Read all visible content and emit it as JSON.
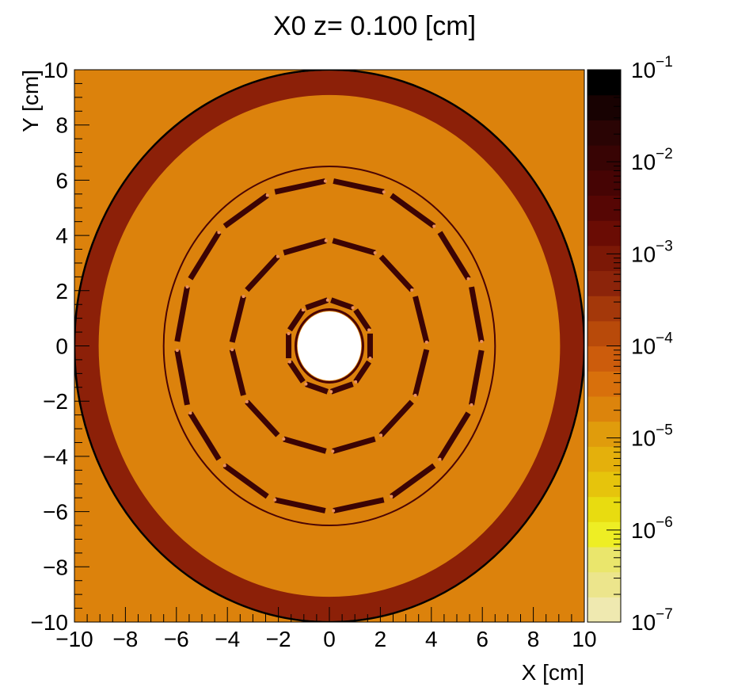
{
  "chart_data": {
    "type": "heatmap",
    "title": "X0 z=  0.100 [cm]",
    "xlabel": "X [cm]",
    "ylabel": "Y [cm]",
    "xlim": [
      -10,
      10
    ],
    "ylim": [
      -10,
      10
    ],
    "x_ticks": [
      -10,
      -8,
      -6,
      -4,
      -2,
      0,
      2,
      4,
      6,
      8,
      10
    ],
    "y_ticks": [
      -10,
      -8,
      -6,
      -4,
      -2,
      0,
      2,
      4,
      6,
      8,
      10
    ],
    "x_tick_labels": [
      "−10",
      "−8",
      "−6",
      "−4",
      "−2",
      "0",
      "2",
      "4",
      "6",
      "8",
      "10"
    ],
    "y_tick_labels": [
      "−10",
      "−8",
      "−6",
      "−4",
      "−2",
      "0",
      "2",
      "4",
      "6",
      "8",
      "10"
    ],
    "colorbar": {
      "scale": "log",
      "range": [
        1e-07,
        0.1
      ],
      "tick_labels": [
        {
          "base": "10",
          "exp": "−7"
        },
        {
          "base": "10",
          "exp": "−6"
        },
        {
          "base": "10",
          "exp": "−5"
        },
        {
          "base": "10",
          "exp": "−4"
        },
        {
          "base": "10",
          "exp": "−3"
        },
        {
          "base": "10",
          "exp": "−2"
        },
        {
          "base": "10",
          "exp": "−1"
        }
      ],
      "bands": [
        "#efe9b0",
        "#ece58c",
        "#eae66c",
        "#eeee24",
        "#e8dc10",
        "#e6c40c",
        "#e4b00c",
        "#e09c0c",
        "#dc840c",
        "#d8700c",
        "#cc5c0c",
        "#b84a0a",
        "#a4380a",
        "#8c240a",
        "#7c1806",
        "#6a0c04",
        "#560604",
        "#460404",
        "#380404",
        "#2a0404",
        "#180202",
        "#000000"
      ]
    },
    "regions": [
      {
        "name": "background",
        "color": "#dc820c"
      },
      {
        "name": "outer-ring",
        "r_inner": 9.05,
        "r_outer": 10.0,
        "color": "#8c2008"
      },
      {
        "name": "outer-shell",
        "radius": 10.0,
        "color": "#000000"
      },
      {
        "name": "middle-shell",
        "radius": 6.5,
        "color": "#4a0404"
      },
      {
        "name": "inner-shell",
        "radius": 1.32,
        "color": "#4a0404"
      },
      {
        "name": "beampipe-hole",
        "radius": 1.25,
        "color": "#ffffff"
      }
    ],
    "polygon_layers": [
      {
        "name": "layer-1",
        "radius": 1.68,
        "sides": 10,
        "color": "#3c0404"
      },
      {
        "name": "layer-2",
        "radius": 3.85,
        "sides": 12,
        "color": "#3c0404"
      },
      {
        "name": "layer-3",
        "radius": 6.0,
        "sides": 16,
        "color": "#3c0404"
      }
    ]
  }
}
